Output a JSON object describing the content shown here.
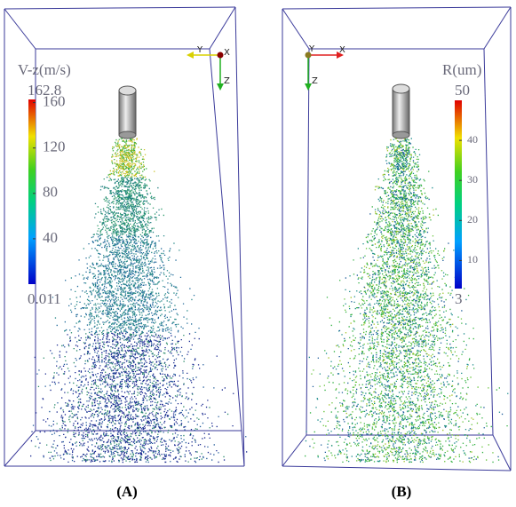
{
  "panels": [
    {
      "label": "(A)",
      "axes": {
        "first": "Y",
        "second": "X",
        "down": "Z"
      },
      "colorbar": {
        "title": "V-z(m/s)",
        "max": 162.8,
        "min": 0.011,
        "ticks": [
          160,
          120,
          80,
          40
        ]
      }
    },
    {
      "label": "(B)",
      "axes": {
        "first": "Y",
        "second": "X",
        "down": "Z"
      },
      "colorbar": {
        "title": "R(um)",
        "max": 50,
        "min": 3,
        "ticks": [
          40,
          30,
          20,
          10
        ]
      }
    }
  ]
}
